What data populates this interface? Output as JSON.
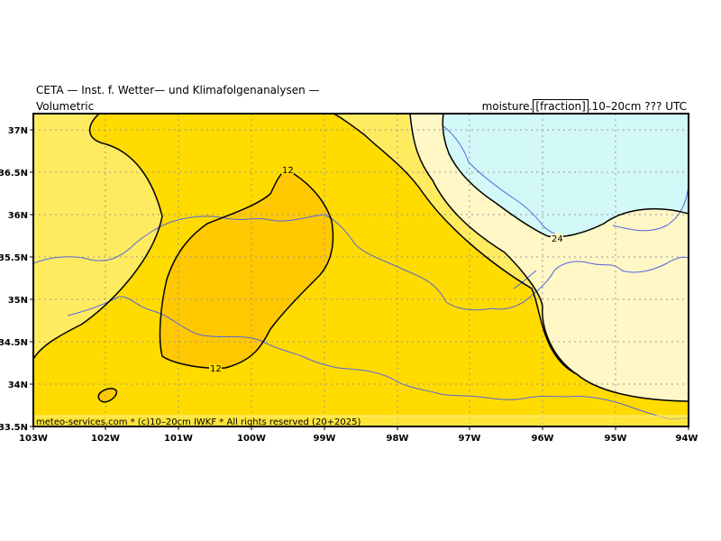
{
  "title": "CETA — Inst. f. Wetter— und Klimafolgenanalysen —",
  "header_left": "Volumetric",
  "header_right_prefix": "moisture.",
  "header_right_boxed": "[fraction]",
  "header_right_suffix": ".10–20cm ??? UTC",
  "credit": "meteo-services.com * (c)10–20cm IWKF * All rights reserved (20+2025)",
  "x_ticks": [
    "103W",
    "102W",
    "101W",
    "100W",
    "99W",
    "98W",
    "97W",
    "96W",
    "95W",
    "94W"
  ],
  "y_ticks": [
    "33.5N",
    "34N",
    "34.5N",
    "35N",
    "35.5N",
    "36N",
    "36.5N",
    "37N"
  ],
  "contour_labels": [
    "12",
    "12",
    "24"
  ],
  "colors": {
    "darkest": "#FFC800",
    "dark": "#FFDB00",
    "mid": "#FFEB60",
    "light": "#FFF7C6",
    "cyan": "#D2F8F8",
    "river": "#5566DD",
    "grid": "#999999"
  },
  "legend_icons": [
    "river-line",
    "grid-line",
    "contour-line"
  ]
}
